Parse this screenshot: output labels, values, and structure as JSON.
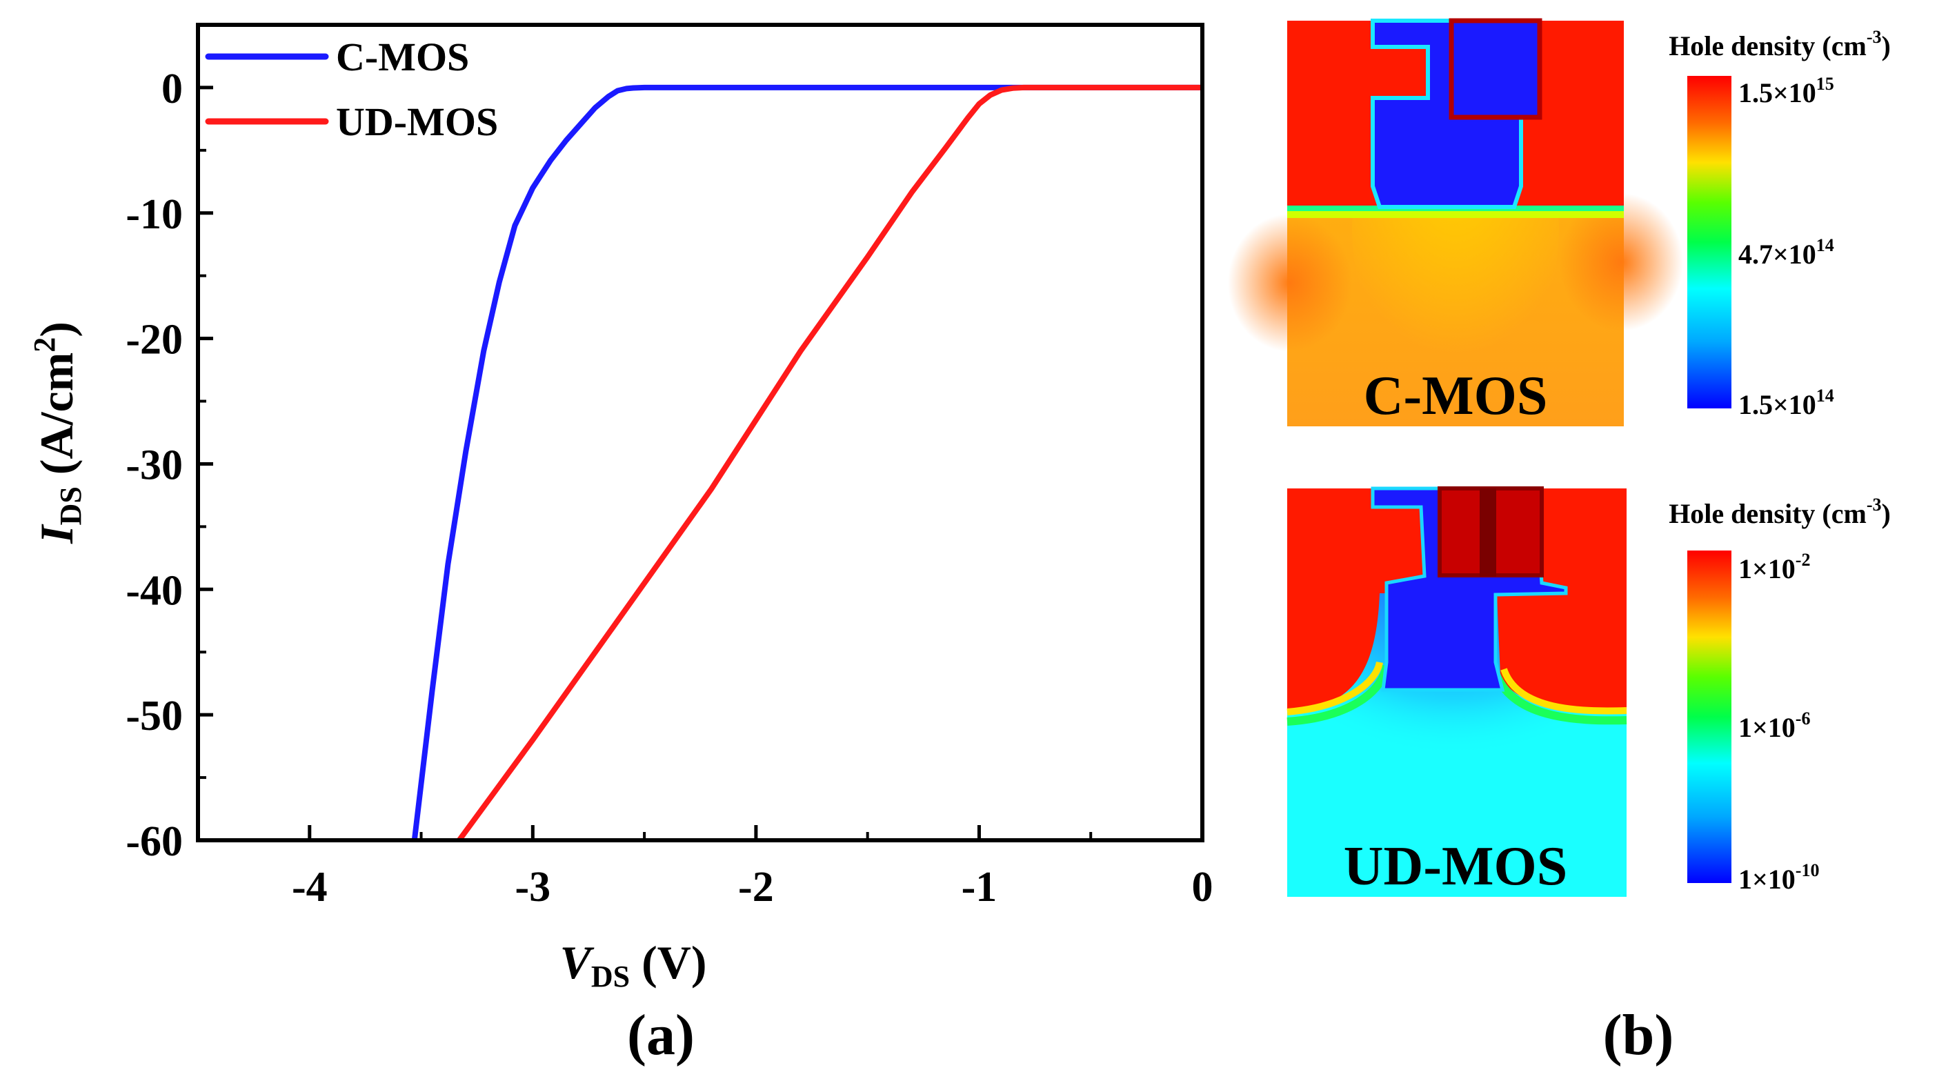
{
  "chart_data": {
    "type": "line",
    "panel_label": "(a)",
    "xlabel": {
      "main": "V",
      "sub": "DS",
      "unit": " (V)"
    },
    "ylabel": {
      "main": "I",
      "sub": "DS",
      "unit_open": " (A/cm",
      "unit_sup": "2",
      "unit_close": ")"
    },
    "xlim": [
      -4.5,
      0
    ],
    "ylim": [
      -60,
      5
    ],
    "xticks": [
      {
        "value": -4,
        "label": "-4"
      },
      {
        "value": -3,
        "label": "-3"
      },
      {
        "value": -2,
        "label": "-2"
      },
      {
        "value": -1,
        "label": "-1"
      },
      {
        "value": 0,
        "label": "0"
      }
    ],
    "yticks": [
      {
        "value": 0,
        "label": "0"
      },
      {
        "value": -10,
        "label": "-10"
      },
      {
        "value": -20,
        "label": "-20"
      },
      {
        "value": -30,
        "label": "-30"
      },
      {
        "value": -40,
        "label": "-40"
      },
      {
        "value": -50,
        "label": "-50"
      },
      {
        "value": -60,
        "label": "-60"
      }
    ],
    "legend_position": "top-left",
    "series": [
      {
        "name": "C-MOS",
        "color": "#1a1aff",
        "x": [
          -3.53,
          -3.45,
          -3.38,
          -3.3,
          -3.22,
          -3.15,
          -3.08,
          -3.0,
          -2.92,
          -2.85,
          -2.78,
          -2.72,
          -2.66,
          -2.62,
          -2.58,
          -2.55,
          -2.5,
          -2.4,
          -2.0,
          -1.0,
          0.0
        ],
        "y": [
          -60,
          -48,
          -38,
          -29,
          -21,
          -15.5,
          -11,
          -8,
          -5.8,
          -4.2,
          -2.8,
          -1.6,
          -0.7,
          -0.25,
          -0.08,
          -0.03,
          0,
          0,
          0,
          0,
          0
        ]
      },
      {
        "name": "UD-MOS",
        "color": "#ff1a1a",
        "x": [
          -3.33,
          -3.0,
          -2.6,
          -2.2,
          -1.8,
          -1.5,
          -1.3,
          -1.15,
          -1.05,
          -1.0,
          -0.95,
          -0.9,
          -0.85,
          -0.8,
          -0.7,
          0.0
        ],
        "y": [
          -60,
          -52,
          -42,
          -32,
          -21,
          -13.5,
          -8.3,
          -4.8,
          -2.4,
          -1.3,
          -0.6,
          -0.2,
          -0.05,
          0,
          0,
          0
        ]
      }
    ]
  },
  "panel_b": {
    "label": "(b)",
    "maps": [
      {
        "device": "C-MOS",
        "colorbar_title_main": "Hole density (cm",
        "colorbar_title_sup": "-3",
        "colorbar_title_close": ")",
        "colorbar_ticks": [
          {
            "mant": "1.5×10",
            "exp": "15"
          },
          {
            "mant": "4.7×10",
            "exp": "14"
          },
          {
            "mant": "1.5×10",
            "exp": "14"
          }
        ],
        "colors": {
          "high": "#ff1a00",
          "low": "#1a1aff",
          "substrate": "#ff9f1a",
          "gate": "#b30000"
        }
      },
      {
        "device": "UD-MOS",
        "colorbar_title_main": "Hole density (cm",
        "colorbar_title_sup": "-3",
        "colorbar_title_close": ")",
        "colorbar_ticks": [
          {
            "mant": "1×10",
            "exp": "-2"
          },
          {
            "mant": "1×10",
            "exp": "-6"
          },
          {
            "mant": "1×10",
            "exp": "-10"
          }
        ],
        "colors": {
          "high": "#ff1a00",
          "low": "#1a1aff",
          "substrate": "#1affff",
          "gate": "#b30000"
        }
      }
    ]
  }
}
